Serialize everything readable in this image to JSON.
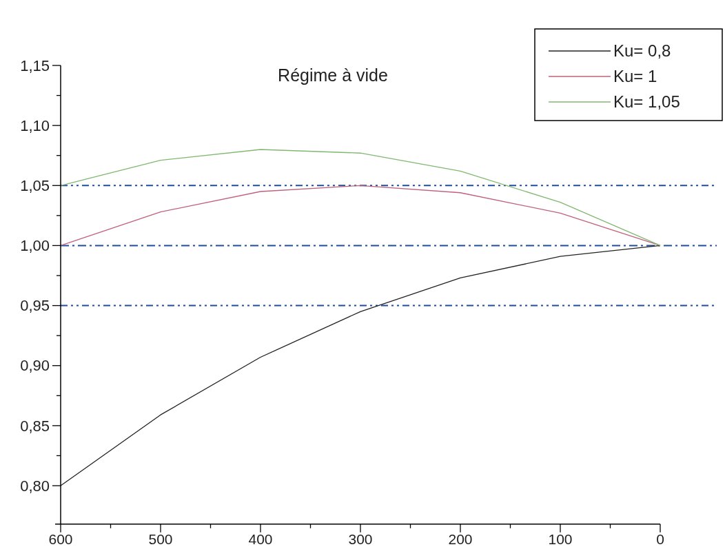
{
  "chart_data": {
    "type": "line",
    "title": "Régime à vide",
    "x": [
      600,
      500,
      400,
      300,
      200,
      100,
      0
    ],
    "series": [
      {
        "name": "Ku= 0,8",
        "color": "#222222",
        "values": [
          0.8,
          0.859,
          0.907,
          0.945,
          0.973,
          0.991,
          1.0
        ]
      },
      {
        "name": "Ku= 1",
        "color": "#c0607a",
        "values": [
          1.0,
          1.028,
          1.045,
          1.05,
          1.044,
          1.027,
          1.0
        ]
      },
      {
        "name": "Ku= 1,05",
        "color": "#80b870",
        "values": [
          1.05,
          1.071,
          1.08,
          1.077,
          1.062,
          1.036,
          1.0
        ]
      }
    ],
    "xlim": [
      600,
      0
    ],
    "xticks": [
      {
        "value": 600,
        "label": "600"
      },
      {
        "value": 550,
        "label": null
      },
      {
        "value": 500,
        "label": "500"
      },
      {
        "value": 450,
        "label": null
      },
      {
        "value": 400,
        "label": "400"
      },
      {
        "value": 350,
        "label": null
      },
      {
        "value": 300,
        "label": "300"
      },
      {
        "value": 250,
        "label": null
      },
      {
        "value": 200,
        "label": "200"
      },
      {
        "value": 150,
        "label": null
      },
      {
        "value": 100,
        "label": "100"
      },
      {
        "value": 50,
        "label": null
      },
      {
        "value": 0,
        "label": "0"
      }
    ],
    "ylim": [
      0.768,
      1.15
    ],
    "yticks": [
      {
        "value": 0.8,
        "label": "0,80"
      },
      {
        "value": 0.825,
        "label": null
      },
      {
        "value": 0.85,
        "label": "0,85"
      },
      {
        "value": 0.875,
        "label": null
      },
      {
        "value": 0.9,
        "label": "0,90"
      },
      {
        "value": 0.925,
        "label": null
      },
      {
        "value": 0.95,
        "label": "0,95"
      },
      {
        "value": 0.975,
        "label": null
      },
      {
        "value": 1.0,
        "label": "1,00"
      },
      {
        "value": 1.025,
        "label": null
      },
      {
        "value": 1.05,
        "label": "1,05"
      },
      {
        "value": 1.075,
        "label": null
      },
      {
        "value": 1.1,
        "label": "1,10"
      },
      {
        "value": 1.125,
        "label": null
      },
      {
        "value": 1.15,
        "label": "1,15"
      }
    ],
    "ref_lines": [
      {
        "axis": "y",
        "value": 1.05,
        "color": "#1f4e9c",
        "line_style": "dashdotdot"
      },
      {
        "axis": "y",
        "value": 1.0,
        "color": "#1f4e9c",
        "line_style": "dashdot"
      },
      {
        "axis": "y",
        "value": 0.95,
        "color": "#1f4e9c",
        "line_style": "dashdotdot"
      }
    ],
    "grid": false,
    "legend": "top right",
    "marker": "none",
    "line_style": "solid"
  }
}
